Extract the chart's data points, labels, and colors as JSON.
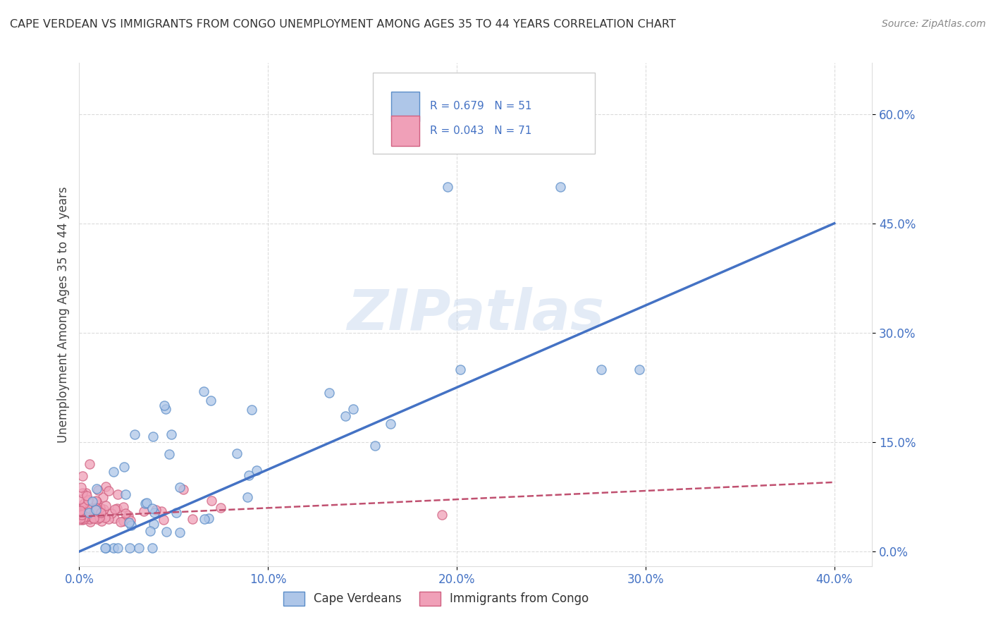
{
  "title": "CAPE VERDEAN VS IMMIGRANTS FROM CONGO UNEMPLOYMENT AMONG AGES 35 TO 44 YEARS CORRELATION CHART",
  "source": "Source: ZipAtlas.com",
  "ylabel": "Unemployment Among Ages 35 to 44 years",
  "xlim": [
    0.0,
    0.42
  ],
  "ylim": [
    -0.02,
    0.67
  ],
  "yticks": [
    0.0,
    0.15,
    0.3,
    0.45,
    0.6
  ],
  "xticks": [
    0.0,
    0.1,
    0.2,
    0.3,
    0.4
  ],
  "ytick_labels": [
    "0.0%",
    "15.0%",
    "30.0%",
    "45.0%",
    "60.0%"
  ],
  "xtick_labels": [
    "0.0%",
    "10.0%",
    "20.0%",
    "30.0%",
    "40.0%"
  ],
  "watermark": "ZIPatlas",
  "series1_name": "Cape Verdeans",
  "series1_color": "#aec6e8",
  "series1_edge_color": "#5b8dc8",
  "series1_line_color": "#4472c4",
  "series1_R": 0.679,
  "series1_N": 51,
  "series2_name": "Immigrants from Congo",
  "series2_color": "#f0a0b8",
  "series2_edge_color": "#d06080",
  "series2_line_color": "#c05070",
  "series2_R": 0.043,
  "series2_N": 71,
  "blue_line_x0": 0.0,
  "blue_line_y0": 0.0,
  "blue_line_x1": 0.4,
  "blue_line_y1": 0.45,
  "pink_line_x0": 0.0,
  "pink_line_y0": 0.048,
  "pink_line_x1": 0.4,
  "pink_line_y1": 0.095,
  "background_color": "#ffffff",
  "grid_color": "#cccccc",
  "tick_color": "#4472c4",
  "title_color": "#333333",
  "ylabel_color": "#444444"
}
